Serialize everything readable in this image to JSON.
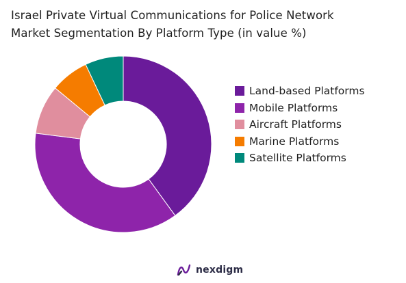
{
  "title": {
    "line1": "Israel Private Virtual Communications for Police Network",
    "line2": "Market Segmentation By Platform Type (in value %)"
  },
  "chart_data": {
    "type": "pie",
    "variant": "donut",
    "title": "Israel Private Virtual Communications for Police Network Market Segmentation By Platform Type (in value %)",
    "categories": [
      "Land-based Platforms",
      "Mobile Platforms",
      "Aircraft Platforms",
      "Marine Platforms",
      "Satellite Platforms"
    ],
    "values": [
      40,
      37,
      9,
      7,
      7
    ],
    "colors": [
      "#6a1b9a",
      "#8e24aa",
      "#e08e9e",
      "#f57c00",
      "#00897b"
    ],
    "start_angle": "12 o'clock",
    "direction": "clockwise",
    "legend_position": "right"
  },
  "brand": {
    "name": "nexdigm"
  }
}
